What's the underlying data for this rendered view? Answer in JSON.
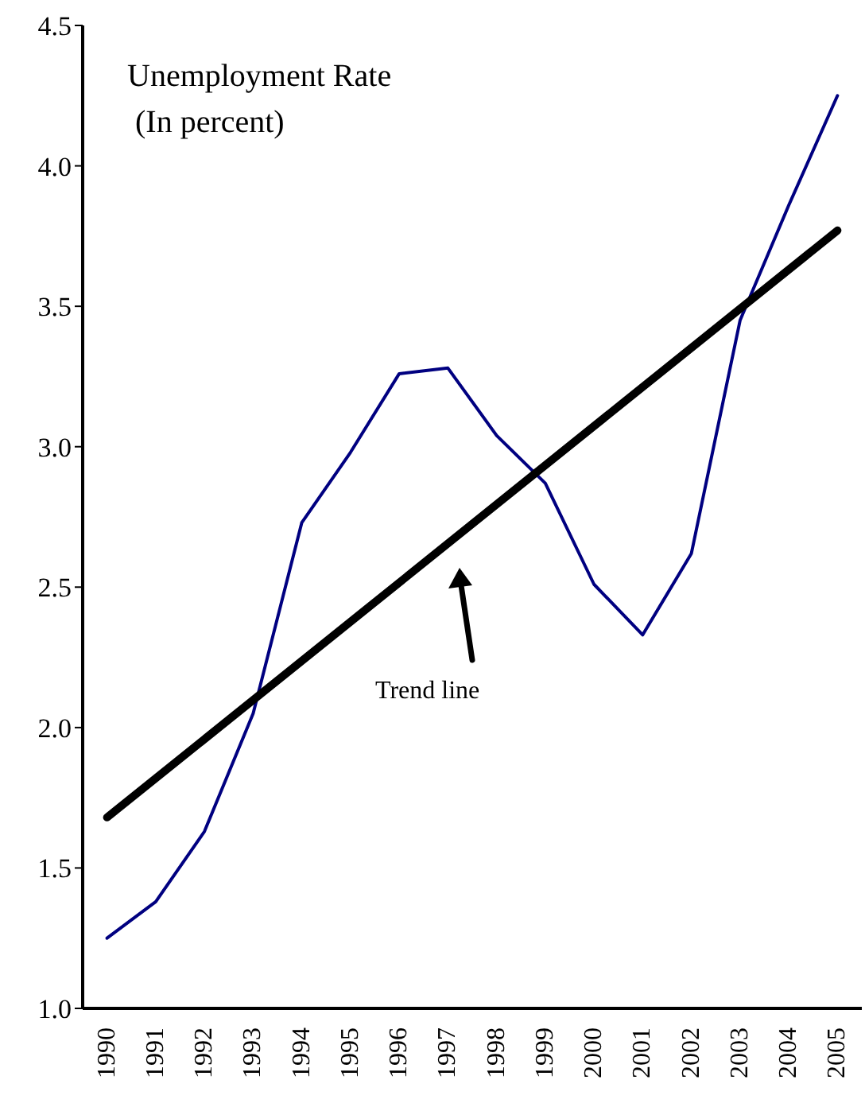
{
  "chart_data": {
    "type": "line",
    "title": "Unemployment Rate",
    "subtitle": "(In percent)",
    "x": [
      1990,
      1991,
      1992,
      1993,
      1994,
      1995,
      1996,
      1997,
      1998,
      1999,
      2000,
      2001,
      2002,
      2003,
      2004,
      2005
    ],
    "xlim": [
      1989.5,
      2005.5
    ],
    "xticks": [
      1990,
      1991,
      1992,
      1993,
      1994,
      1995,
      1996,
      1997,
      1998,
      1999,
      2000,
      2001,
      2002,
      2003,
      2004,
      2005
    ],
    "ylim": [
      1.0,
      4.5
    ],
    "yticks": [
      {
        "value": 1.0,
        "label": "1.0"
      },
      {
        "value": 1.5,
        "label": "1.5"
      },
      {
        "value": 2.0,
        "label": "2.0"
      },
      {
        "value": 2.5,
        "label": "2.5"
      },
      {
        "value": 3.0,
        "label": "3.0"
      },
      {
        "value": 3.5,
        "label": "3.5"
      },
      {
        "value": 4.0,
        "label": "4.0"
      },
      {
        "value": 4.5,
        "label": "4.5"
      }
    ],
    "series": [
      {
        "color": "#000080",
        "values": [
          1.25,
          1.38,
          1.63,
          2.05,
          2.73,
          2.98,
          3.26,
          3.28,
          3.04,
          2.87,
          2.51,
          2.33,
          2.62,
          3.45,
          3.86,
          4.25
        ]
      },
      {
        "type": "line",
        "color": "#000000",
        "x": [
          1990,
          2005
        ],
        "values": [
          1.68,
          3.77
        ]
      }
    ],
    "annotations": [
      "Trend line"
    ],
    "marker": "none",
    "line_style": "solid"
  }
}
